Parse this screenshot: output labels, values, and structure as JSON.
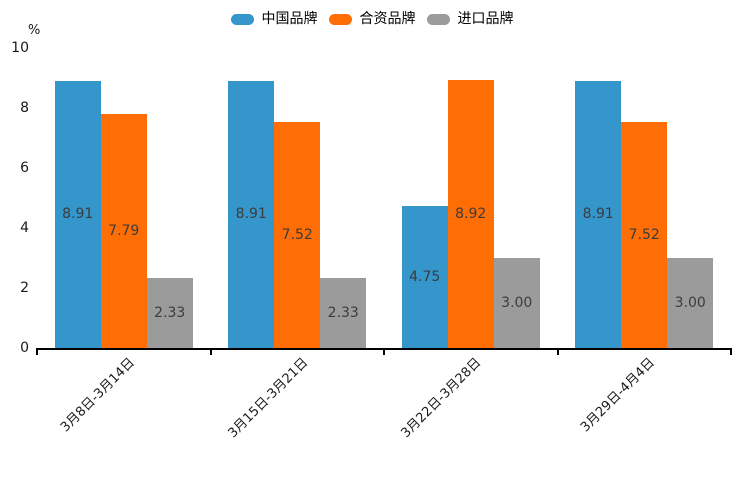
{
  "chart_data": {
    "type": "bar",
    "title": "",
    "unit_label": "%",
    "categories": [
      "3月8日-3月14日",
      "3月15日-3月21日",
      "3月22日-3月28日",
      "3月29日-4月4日"
    ],
    "series": [
      {
        "name": "中国品牌",
        "color": "#3496CB",
        "values": [
          8.91,
          8.91,
          4.75,
          8.91
        ]
      },
      {
        "name": "合资品牌",
        "color": "#FF6D05",
        "values": [
          7.79,
          7.52,
          8.92,
          7.52
        ]
      },
      {
        "name": "进口品牌",
        "color": "#9B9B9B",
        "values": [
          2.33,
          2.33,
          3.0,
          3.0
        ]
      }
    ],
    "value_label_decimals": 2,
    "ylim": [
      0,
      10
    ],
    "yticks": [
      10,
      8,
      6,
      4,
      2,
      0
    ],
    "grid": false,
    "legend_position": "top-center",
    "x_label_rotation_deg": -45,
    "colors": {
      "axis": "#000000",
      "tick_text": "#1a1a1a",
      "bar_label_text": "#3c3c3c",
      "background": "#ffffff"
    }
  }
}
